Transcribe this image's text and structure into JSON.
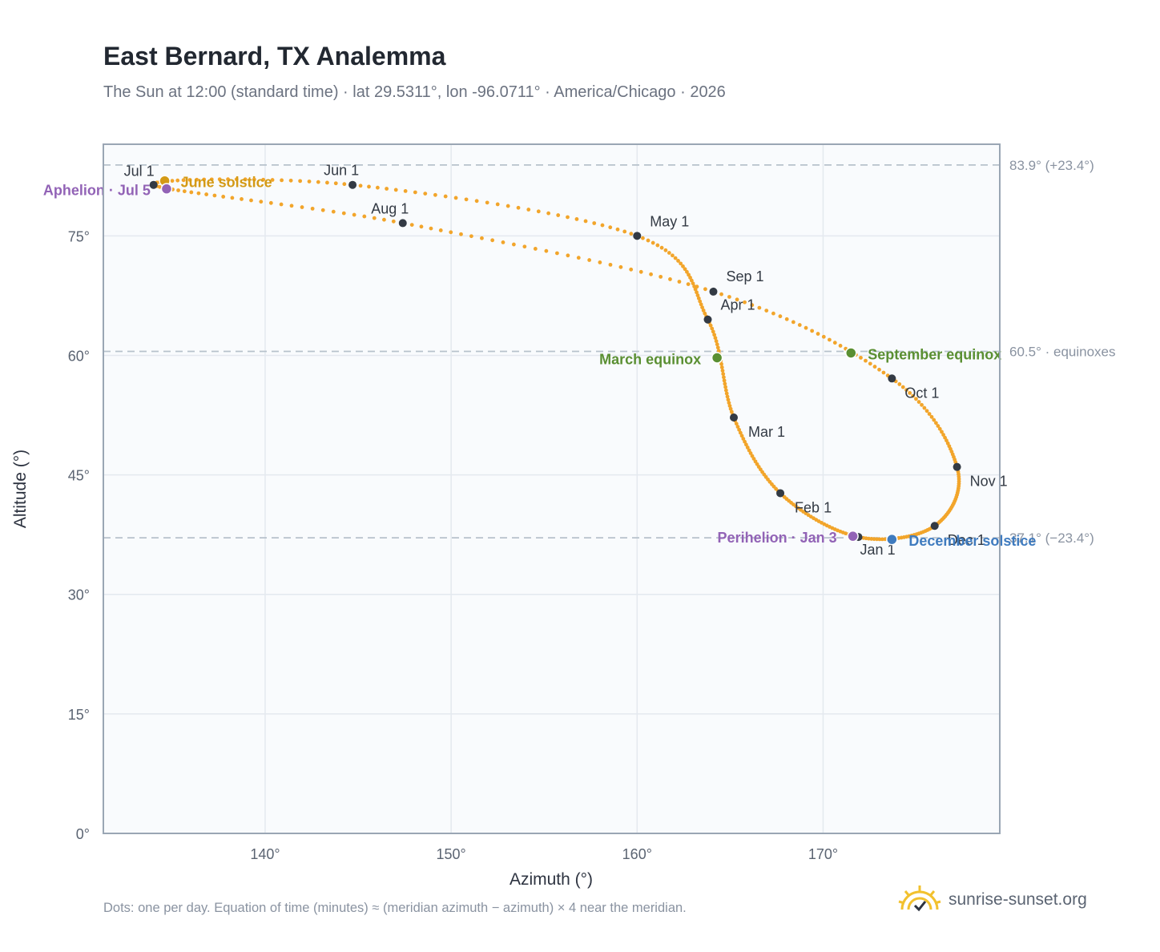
{
  "title": "East Bernard, TX Analemma",
  "subtitle": "The Sun at 12:00 (standard time) · lat 29.5311°, lon -96.0711° · America/Chicago · 2026",
  "footnote": "Dots: one per day. Equation of time (minutes) ≈ (meridian azimuth − azimuth) × 4 near the meridian.",
  "brand": "sunrise-sunset.org",
  "colors": {
    "curve": "#f2a52b",
    "month": "#333a44",
    "solstice_june": "#d49a16",
    "solstice_december": "#3f7bbf",
    "equinox": "#5a8f32",
    "apsis": "#9263b6",
    "refline": "#b7c2cc",
    "plotbg": "#f9fbfd",
    "grid": "#e4e9ef",
    "axis": "#9aa6b4"
  },
  "chart_data": {
    "type": "scatter",
    "xlabel": "Azimuth (°)",
    "ylabel": "Altitude (°)",
    "xlim": [
      131.3,
      179.5
    ],
    "ylim": [
      0,
      86.5
    ],
    "xticks": [
      140,
      150,
      160,
      170
    ],
    "yticks": [
      0,
      15,
      30,
      45,
      60,
      75
    ],
    "x_tick_labels": [
      "140°",
      "150°",
      "160°",
      "170°"
    ],
    "y_tick_labels": [
      "0°",
      "15°",
      "30°",
      "45°",
      "60°",
      "75°"
    ],
    "grid": true,
    "reference_lines": [
      {
        "altitude": 83.9,
        "label": "83.9° (+23.4°)"
      },
      {
        "altitude": 60.5,
        "label": "60.5° · equinoxes"
      },
      {
        "altitude": 37.1,
        "label": "37.1° (−23.4°)"
      }
    ],
    "months": [
      {
        "label": "Jan 1",
        "azimuth": 171.9,
        "altitude": 37.2
      },
      {
        "label": "Feb 1",
        "azimuth": 167.7,
        "altitude": 42.7
      },
      {
        "label": "Mar 1",
        "azimuth": 165.2,
        "altitude": 52.2
      },
      {
        "label": "Apr 1",
        "azimuth": 163.8,
        "altitude": 64.5
      },
      {
        "label": "May 1",
        "azimuth": 160.0,
        "altitude": 75.0
      },
      {
        "label": "Jun 1",
        "azimuth": 144.7,
        "altitude": 81.4
      },
      {
        "label": "Jul 1",
        "azimuth": 134.0,
        "altitude": 81.4
      },
      {
        "label": "Aug 1",
        "azimuth": 147.4,
        "altitude": 76.6
      },
      {
        "label": "Sep 1",
        "azimuth": 164.1,
        "altitude": 68.0
      },
      {
        "label": "Oct 1",
        "azimuth": 173.7,
        "altitude": 57.1
      },
      {
        "label": "Nov 1",
        "azimuth": 177.2,
        "altitude": 46.0
      },
      {
        "label": "Dec 1",
        "azimuth": 176.0,
        "altitude": 38.6
      }
    ],
    "events": [
      {
        "label": "December solstice",
        "azimuth": 173.7,
        "altitude": 36.9,
        "kind": "solstice_december"
      },
      {
        "label": "June solstice",
        "azimuth": 134.6,
        "altitude": 81.9,
        "kind": "solstice_june"
      },
      {
        "label": "March equinox",
        "azimuth": 164.3,
        "altitude": 59.7,
        "kind": "equinox"
      },
      {
        "label": "September equinox",
        "azimuth": 171.5,
        "altitude": 60.3,
        "kind": "equinox"
      },
      {
        "label": "Perihelion · Jan 3",
        "azimuth": 171.6,
        "altitude": 37.3,
        "kind": "apsis"
      },
      {
        "label": "Aphelion · Jul 5",
        "azimuth": 134.7,
        "altitude": 80.9,
        "kind": "apsis"
      }
    ]
  }
}
